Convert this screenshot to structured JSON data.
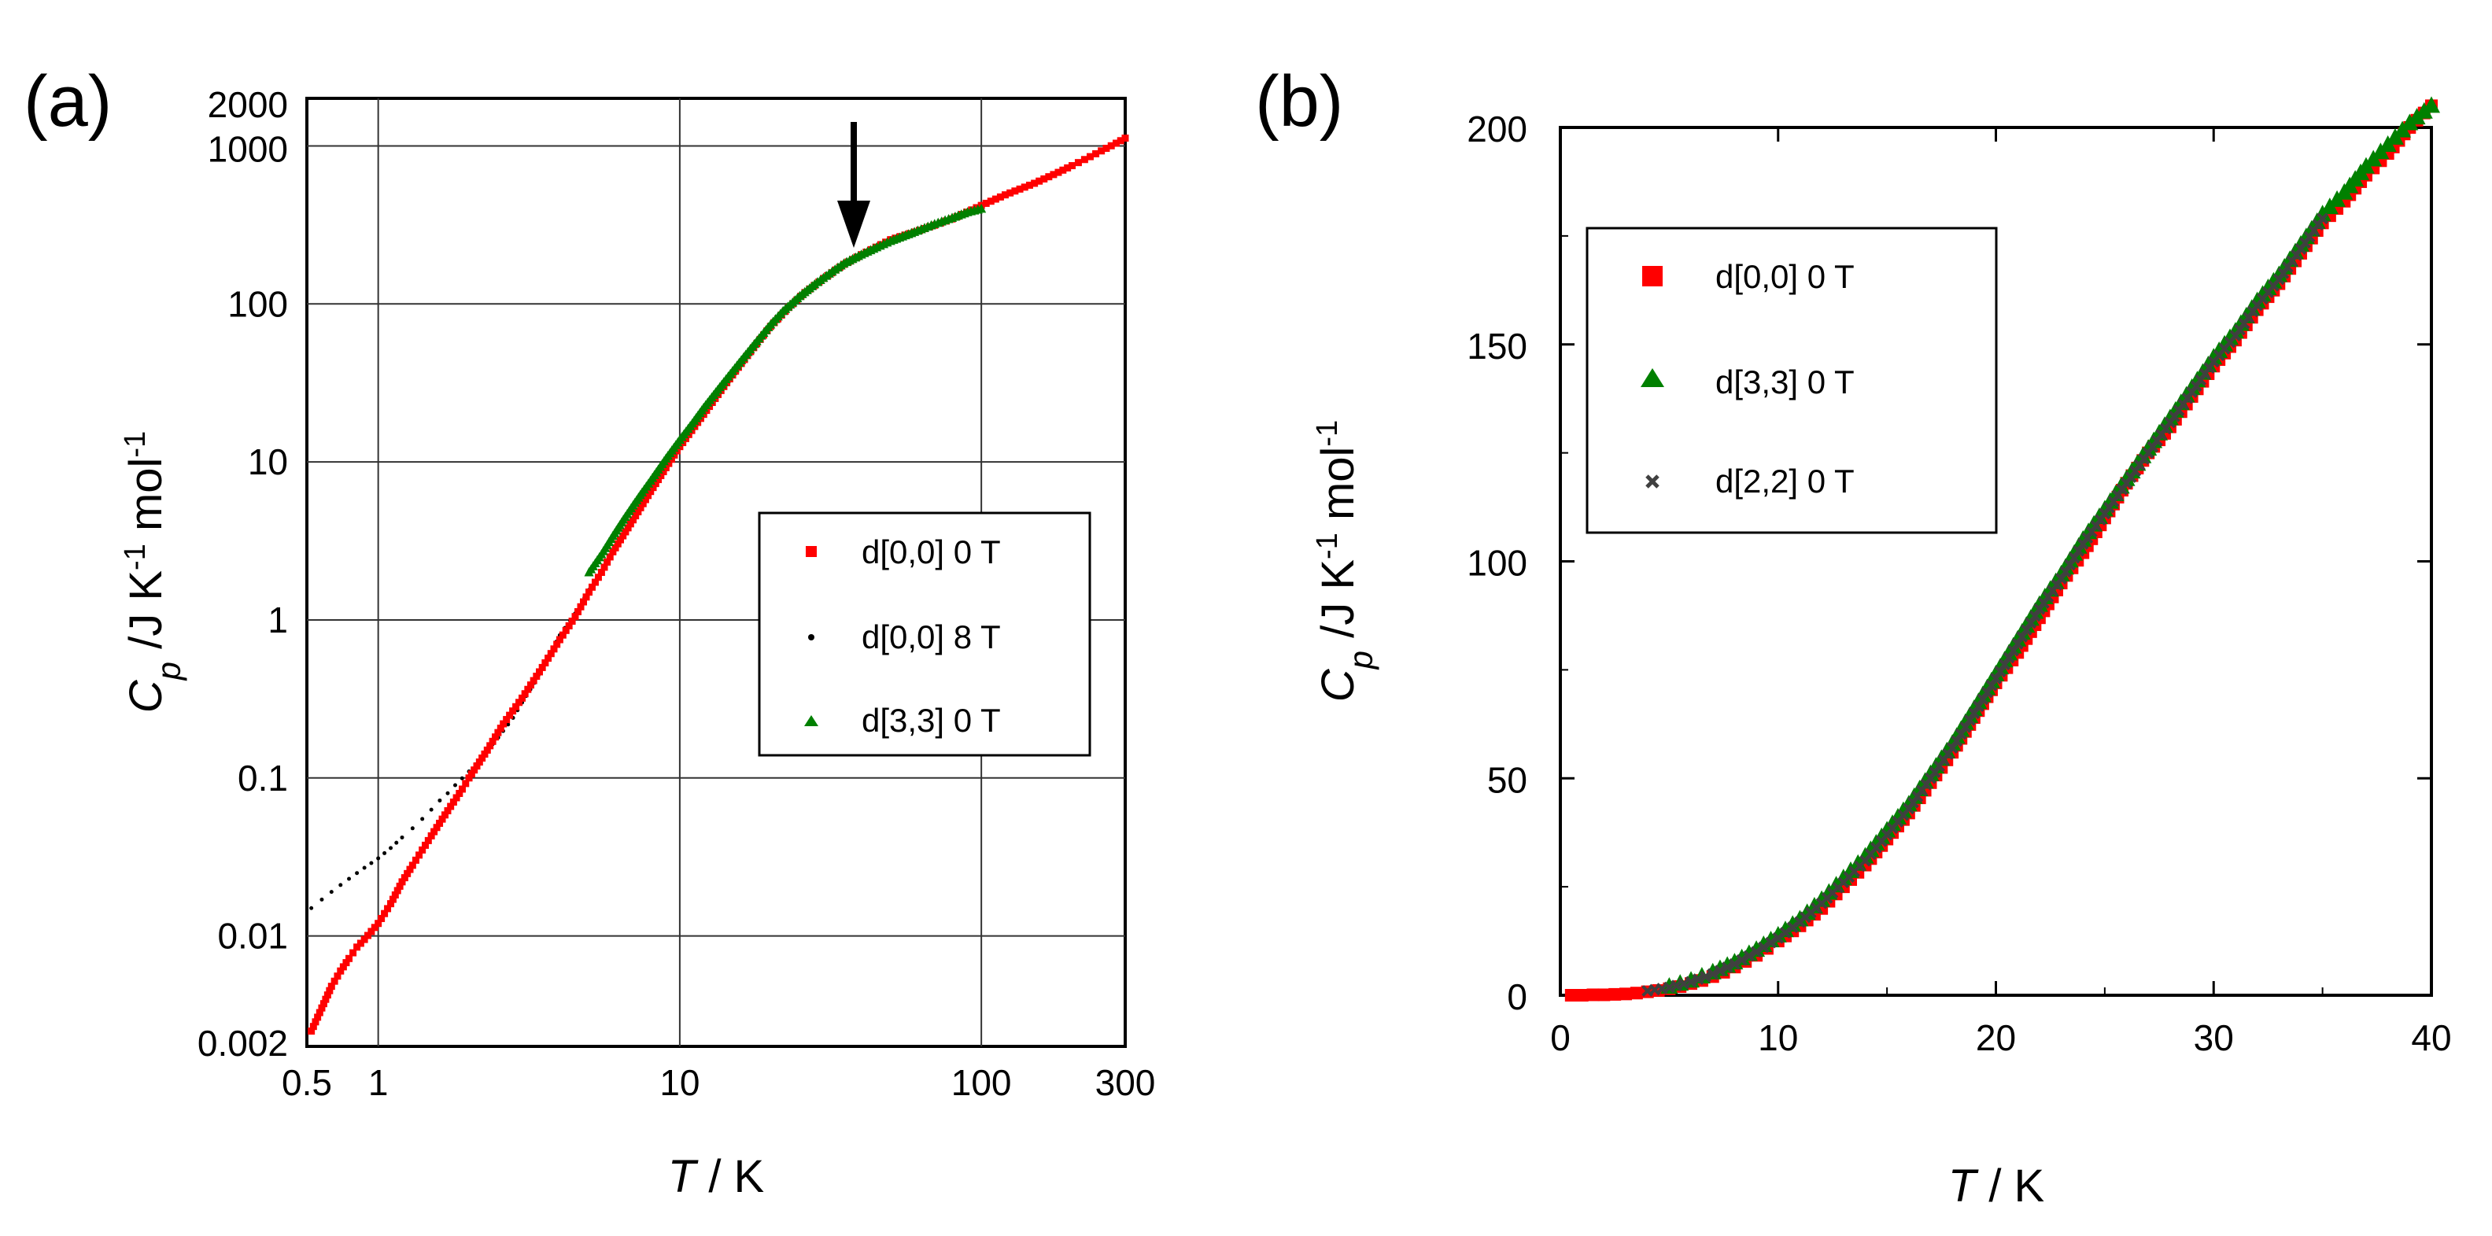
{
  "chart_data": [
    {
      "type": "scatter",
      "panel_label": "(a)",
      "xscale": "log",
      "yscale": "log",
      "xlim": [
        0.58,
        300
      ],
      "ylim": [
        0.002,
        2000
      ],
      "grid": true,
      "legend_position": "center-right",
      "xlabel": {
        "italic": "T",
        "rest": " / K"
      },
      "ylabel": {
        "italic": "C",
        "sub": "p",
        "t1": " /J K",
        "sup1": "-1",
        "t2": " mol",
        "sup2": "-1"
      },
      "xticks": [
        {
          "value": 0.58,
          "label": "0.5"
        },
        {
          "value": 1,
          "label": "1"
        },
        {
          "value": 10,
          "label": "10"
        },
        {
          "value": 100,
          "label": "100"
        },
        {
          "value": 300,
          "label": "300"
        }
      ],
      "yticks": [
        {
          "value": 0.002,
          "label": "0.002"
        },
        {
          "value": 0.01,
          "label": "0.01"
        },
        {
          "value": 0.1,
          "label": "0.1"
        },
        {
          "value": 1,
          "label": "1"
        },
        {
          "value": 10,
          "label": "10"
        },
        {
          "value": 100,
          "label": "100"
        },
        {
          "value": 1000,
          "label": "1000"
        },
        {
          "value": 2000,
          "label": "2000"
        }
      ],
      "annotation": {
        "type": "arrow",
        "x": 35,
        "y": 170,
        "direction": "down"
      },
      "series": [
        {
          "name": "d[0,0] 0 T",
          "marker": "square",
          "color": "#ff0000",
          "points": [
            [
              0.6,
              0.0025
            ],
            [
              0.65,
              0.0035
            ],
            [
              0.7,
              0.0048
            ],
            [
              0.75,
              0.006
            ],
            [
              0.8,
              0.0072
            ],
            [
              0.85,
              0.0085
            ],
            [
              0.9,
              0.0095
            ],
            [
              1.0,
              0.012
            ],
            [
              1.1,
              0.016
            ],
            [
              1.2,
              0.022
            ],
            [
              1.3,
              0.028
            ],
            [
              1.4,
              0.035
            ],
            [
              1.5,
              0.043
            ],
            [
              1.7,
              0.062
            ],
            [
              1.9,
              0.085
            ],
            [
              2.0,
              0.1
            ],
            [
              2.3,
              0.15
            ],
            [
              2.6,
              0.22
            ],
            [
              3.0,
              0.32
            ],
            [
              3.5,
              0.5
            ],
            [
              4.0,
              0.75
            ],
            [
              4.5,
              1.05
            ],
            [
              5.0,
              1.5
            ],
            [
              5.5,
              2.0
            ],
            [
              6.0,
              2.7
            ],
            [
              7.0,
              4.3
            ],
            [
              8.0,
              6.5
            ],
            [
              9.0,
              9.2
            ],
            [
              10,
              12.5
            ],
            [
              12,
              20
            ],
            [
              14,
              30
            ],
            [
              16,
              42
            ],
            [
              18,
              56
            ],
            [
              20,
              72
            ],
            [
              23,
              95
            ],
            [
              26,
              118
            ],
            [
              30,
              145
            ],
            [
              35,
              178
            ],
            [
              40,
              205
            ],
            [
              50,
              255
            ],
            [
              60,
              285
            ],
            [
              70,
              315
            ],
            [
              80,
              345
            ],
            [
              100,
              420
            ],
            [
              120,
              490
            ],
            [
              150,
              580
            ],
            [
              180,
              680
            ],
            [
              200,
              750
            ],
            [
              220,
              820
            ],
            [
              250,
              930
            ],
            [
              280,
              1040
            ],
            [
              300,
              1120
            ]
          ]
        },
        {
          "name": "d[0,0] 8 T",
          "marker": "dot",
          "color": "#000000",
          "points": [
            [
              0.6,
              0.015
            ],
            [
              0.65,
              0.017
            ],
            [
              0.7,
              0.019
            ],
            [
              0.75,
              0.021
            ],
            [
              0.8,
              0.023
            ],
            [
              0.85,
              0.025
            ],
            [
              0.9,
              0.027
            ],
            [
              1.0,
              0.031
            ],
            [
              1.1,
              0.036
            ],
            [
              1.2,
              0.042
            ],
            [
              1.3,
              0.048
            ],
            [
              1.4,
              0.055
            ],
            [
              1.5,
              0.063
            ],
            [
              1.6,
              0.072
            ],
            [
              1.7,
              0.08
            ],
            [
              1.8,
              0.09
            ],
            [
              2.0,
              0.11
            ],
            [
              2.2,
              0.135
            ],
            [
              2.5,
              0.18
            ],
            [
              2.8,
              0.24
            ],
            [
              3.0,
              0.3
            ],
            [
              3.3,
              0.4
            ],
            [
              3.6,
              0.55
            ],
            [
              4.0,
              0.8
            ],
            [
              4.5,
              1.1
            ],
            [
              5.0,
              1.55
            ]
          ]
        },
        {
          "name": "d[3,3] 0 T",
          "marker": "triangle",
          "color": "#008000",
          "points": [
            [
              5.0,
              2.0
            ],
            [
              5.5,
              2.6
            ],
            [
              6.0,
              3.4
            ],
            [
              6.5,
              4.3
            ],
            [
              7.0,
              5.3
            ],
            [
              7.5,
              6.4
            ],
            [
              8.0,
              7.6
            ],
            [
              9.0,
              10.5
            ],
            [
              10,
              13.8
            ],
            [
              11,
              17.5
            ],
            [
              12,
              22
            ],
            [
              14,
              32
            ],
            [
              16,
              44
            ],
            [
              18,
              58
            ],
            [
              20,
              74
            ],
            [
              22,
              90
            ],
            [
              25,
              112
            ],
            [
              28,
              133
            ],
            [
              32,
              160
            ],
            [
              35,
              180
            ],
            [
              40,
              205
            ],
            [
              45,
              228
            ],
            [
              50,
              250
            ],
            [
              60,
              285
            ],
            [
              70,
              320
            ],
            [
              80,
              350
            ],
            [
              90,
              380
            ],
            [
              100,
              400
            ]
          ]
        }
      ]
    },
    {
      "type": "scatter",
      "panel_label": "(b)",
      "xscale": "linear",
      "yscale": "linear",
      "xlim": [
        0,
        40
      ],
      "ylim": [
        0,
        200
      ],
      "grid": false,
      "legend_position": "top-left",
      "xlabel": {
        "italic": "T",
        "rest": " / K"
      },
      "ylabel": {
        "italic": "C",
        "sub": "p",
        "t1": " /J K",
        "sup1": "-1",
        "t2": " mol",
        "sup2": "-1"
      },
      "xticks": [
        {
          "value": 0,
          "label": "0"
        },
        {
          "value": 10,
          "label": "10"
        },
        {
          "value": 20,
          "label": "20"
        },
        {
          "value": 30,
          "label": "30"
        },
        {
          "value": 40,
          "label": "40"
        }
      ],
      "yticks": [
        {
          "value": 0,
          "label": "0"
        },
        {
          "value": 50,
          "label": "50"
        },
        {
          "value": 100,
          "label": "100"
        },
        {
          "value": 150,
          "label": "150"
        },
        {
          "value": 200,
          "label": "200"
        }
      ],
      "series": [
        {
          "name": "d[0,0] 0 T",
          "marker": "square",
          "color": "#ff0000",
          "points": [
            [
              0.5,
              0.0
            ],
            [
              1,
              0.0
            ],
            [
              1.5,
              0.1
            ],
            [
              2,
              0.1
            ],
            [
              2.5,
              0.2
            ],
            [
              3,
              0.3
            ],
            [
              3.5,
              0.5
            ],
            [
              4,
              0.8
            ],
            [
              4.5,
              1.1
            ],
            [
              5,
              1.5
            ],
            [
              5.5,
              2.0
            ],
            [
              6,
              2.7
            ],
            [
              6.5,
              3.4
            ],
            [
              7,
              4.3
            ],
            [
              7.5,
              5.3
            ],
            [
              8,
              6.5
            ],
            [
              8.5,
              7.8
            ],
            [
              9,
              9.2
            ],
            [
              9.5,
              10.8
            ],
            [
              10,
              12.5
            ],
            [
              11,
              16
            ],
            [
              12,
              20
            ],
            [
              13,
              25
            ],
            [
              14,
              30
            ],
            [
              15,
              36
            ],
            [
              16,
              42
            ],
            [
              17,
              49
            ],
            [
              18,
              56
            ],
            [
              19,
              64
            ],
            [
              20,
              72
            ],
            [
              21,
              79
            ],
            [
              22,
              87
            ],
            [
              23,
              95
            ],
            [
              24,
              102
            ],
            [
              25,
              110
            ],
            [
              26,
              118
            ],
            [
              27,
              125
            ],
            [
              28,
              131
            ],
            [
              29,
              138
            ],
            [
              30,
              145
            ],
            [
              31,
              151
            ],
            [
              32,
              158
            ],
            [
              33,
              164
            ],
            [
              34,
              171
            ],
            [
              35,
              178
            ],
            [
              36,
              183
            ],
            [
              37,
              189
            ],
            [
              38,
              194
            ],
            [
              39,
              200
            ],
            [
              40,
              205
            ]
          ]
        },
        {
          "name": "d[3,3] 0 T",
          "marker": "triangle",
          "color": "#008000",
          "points": [
            [
              5,
              2.0
            ],
            [
              6,
              3.4
            ],
            [
              7,
              5.3
            ],
            [
              8,
              7.6
            ],
            [
              9,
              10.5
            ],
            [
              10,
              13.8
            ],
            [
              11,
              17.5
            ],
            [
              12,
              22
            ],
            [
              13,
              27
            ],
            [
              14,
              32
            ],
            [
              15,
              38
            ],
            [
              16,
              44
            ],
            [
              17,
              51
            ],
            [
              18,
              58
            ],
            [
              19,
              66
            ],
            [
              20,
              74
            ],
            [
              21,
              82
            ],
            [
              22,
              90
            ],
            [
              23,
              97
            ],
            [
              24,
              105
            ],
            [
              25,
              112
            ],
            [
              26,
              119
            ],
            [
              27,
              126
            ],
            [
              28,
              133
            ],
            [
              29,
              140
            ],
            [
              30,
              147
            ],
            [
              31,
              153
            ],
            [
              32,
              160
            ],
            [
              33,
              166
            ],
            [
              34,
              173
            ],
            [
              35,
              180
            ],
            [
              36,
              185
            ],
            [
              37,
              191
            ],
            [
              38,
              196
            ],
            [
              39,
              201
            ],
            [
              40,
              205
            ]
          ]
        },
        {
          "name": "d[2,2] 0 T",
          "marker": "cross",
          "color": "#404040",
          "points": [
            [
              4,
              1.0
            ],
            [
              5,
              1.8
            ],
            [
              6,
              3.1
            ],
            [
              7,
              4.9
            ],
            [
              8,
              7.2
            ],
            [
              9,
              10.0
            ],
            [
              10,
              13.2
            ],
            [
              11,
              16.9
            ],
            [
              12,
              21.2
            ],
            [
              13,
              26
            ],
            [
              14,
              31
            ],
            [
              15,
              37
            ],
            [
              16,
              43
            ],
            [
              17,
              50
            ],
            [
              18,
              57
            ],
            [
              19,
              65
            ],
            [
              20,
              73
            ],
            [
              21,
              81
            ],
            [
              22,
              89
            ],
            [
              23,
              96
            ],
            [
              24,
              104
            ],
            [
              25,
              111
            ],
            [
              26,
              118
            ],
            [
              27,
              125
            ],
            [
              28,
              132
            ],
            [
              29,
              139
            ],
            [
              30,
              146
            ],
            [
              31,
              152
            ],
            [
              32,
              159
            ],
            [
              33,
              165
            ],
            [
              34,
              172
            ],
            [
              35,
              179
            ]
          ]
        }
      ]
    }
  ]
}
